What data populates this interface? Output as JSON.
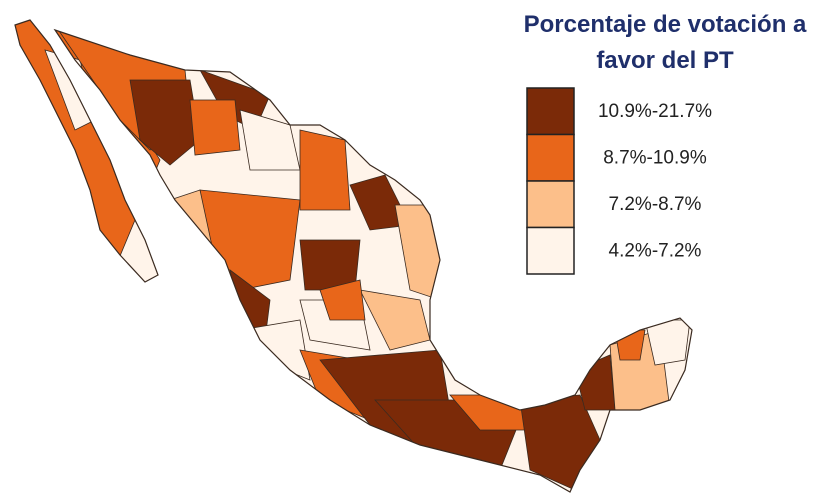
{
  "legend": {
    "title_lines": [
      "Porcentaje de votación a",
      "favor del PT"
    ],
    "items": [
      {
        "label": "10.9%-21.7%",
        "color": "#7b2a08"
      },
      {
        "label": "8.7%-10.9%",
        "color": "#e8661a"
      },
      {
        "label": "7.2%-8.7%",
        "color": "#fcbf8a"
      },
      {
        "label": "4.2%-7.2%",
        "color": "#fff4ea"
      }
    ]
  }
}
